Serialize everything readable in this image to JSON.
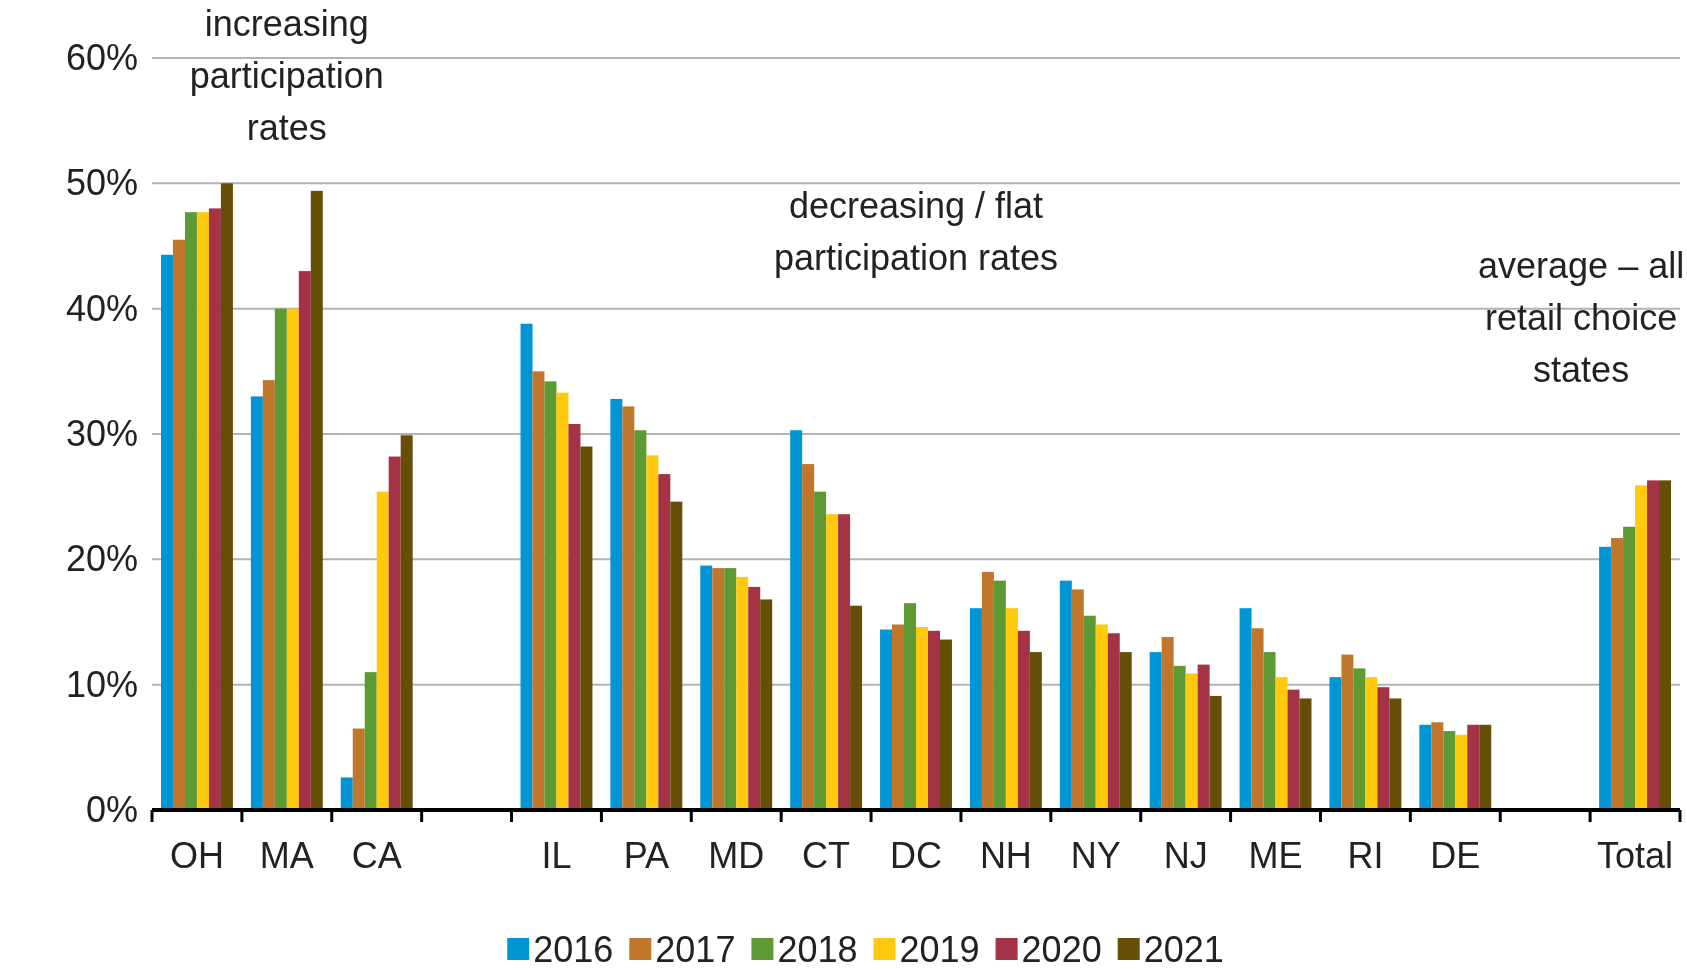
{
  "chart_data": {
    "type": "bar",
    "categories": [
      "OH",
      "MA",
      "CA",
      null,
      "IL",
      "PA",
      "MD",
      "CT",
      "DC",
      "NH",
      "NY",
      "NJ",
      "ME",
      "RI",
      "DE",
      null,
      "Total"
    ],
    "series": [
      {
        "name": "2016",
        "color": "#0096d6",
        "values": [
          44.3,
          33,
          2.6,
          null,
          38.8,
          32.8,
          19.5,
          30.3,
          14.4,
          16.1,
          18.3,
          12.6,
          16.1,
          10.6,
          6.8,
          null,
          21
        ]
      },
      {
        "name": "2017",
        "color": "#c0762b",
        "values": [
          45.5,
          34.3,
          6.5,
          null,
          35,
          32.2,
          19.3,
          27.6,
          14.8,
          19,
          17.6,
          13.8,
          14.5,
          12.4,
          7,
          null,
          21.7
        ]
      },
      {
        "name": "2018",
        "color": "#5e9a34",
        "values": [
          47.7,
          40,
          11,
          null,
          34.2,
          30.3,
          19.3,
          25.4,
          16.5,
          18.3,
          15.5,
          11.5,
          12.6,
          11.3,
          6.3,
          null,
          22.6
        ]
      },
      {
        "name": "2019",
        "color": "#ffc90e",
        "values": [
          47.7,
          40,
          25.4,
          null,
          33.3,
          28.3,
          18.6,
          23.6,
          14.6,
          16.1,
          14.8,
          10.9,
          10.6,
          10.6,
          6,
          null,
          25.9
        ]
      },
      {
        "name": "2020",
        "color": "#a33345",
        "values": [
          48,
          43,
          28.2,
          null,
          30.8,
          26.8,
          17.8,
          23.6,
          14.3,
          14.3,
          14.1,
          11.6,
          9.6,
          9.8,
          6.8,
          null,
          26.3
        ]
      },
      {
        "name": "2021",
        "color": "#664e06",
        "values": [
          50,
          49.4,
          29.9,
          null,
          29,
          24.6,
          16.8,
          16.3,
          13.6,
          12.6,
          12.6,
          9.1,
          8.9,
          8.9,
          6.8,
          null,
          26.3
        ]
      }
    ],
    "ylim": [
      0,
      60
    ],
    "yticks": [
      {
        "value": 0,
        "label": "0%"
      },
      {
        "value": 10,
        "label": "10%"
      },
      {
        "value": 20,
        "label": "20%"
      },
      {
        "value": 30,
        "label": "30%"
      },
      {
        "value": 40,
        "label": "40%"
      },
      {
        "value": 50,
        "label": "50%"
      },
      {
        "value": 60,
        "label": "60%"
      }
    ],
    "grid": "y",
    "legend": "bottom",
    "annotations": [
      "increasing\nparticipation\nrates",
      "decreasing / flat\nparticipation rates",
      "average – all\nretail choice\nstates"
    ]
  }
}
